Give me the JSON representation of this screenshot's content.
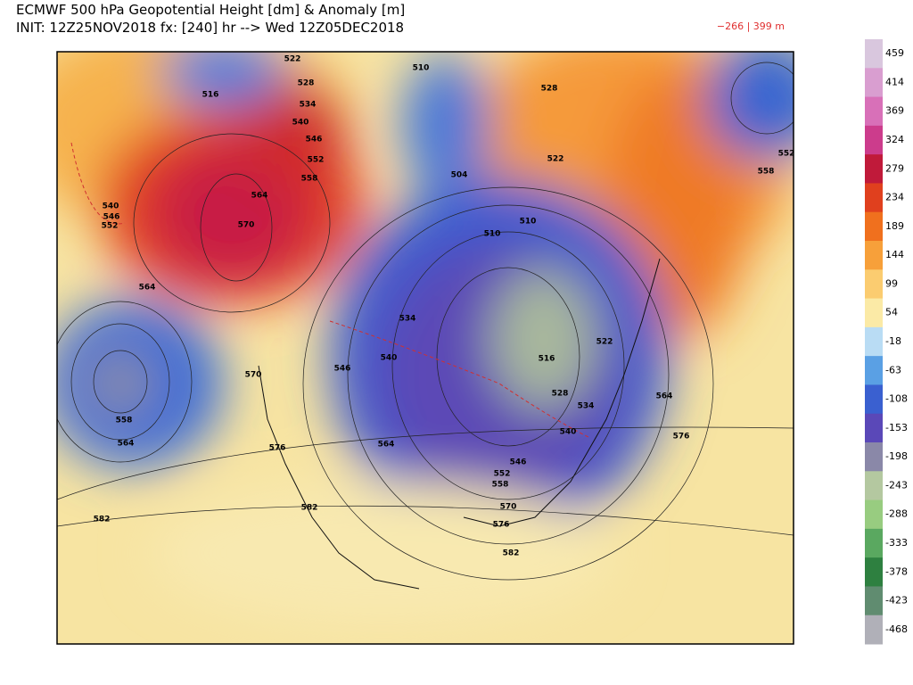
{
  "header": {
    "title": "ECMWF 500 hPa Geopotential Height [dm] & Anomaly [m]",
    "subtitle": "INIT: 12Z25NOV2018 fx: [240] hr --> Wed 12Z05DEC2018",
    "range": "−266 | 399 m"
  },
  "colorbar": {
    "levels": [
      459,
      414,
      369,
      324,
      279,
      234,
      189,
      144,
      99,
      54,
      -18,
      -63,
      -108,
      -153,
      -198,
      -243,
      -288,
      -333,
      -378,
      -423,
      -468
    ],
    "colors": [
      "#d9c7de",
      "#d99ed0",
      "#d870b8",
      "#cc3c8c",
      "#c01a3a",
      "#e0401e",
      "#f0701e",
      "#f7a03a",
      "#fbcc70",
      "#fbeaa6",
      "#b9dcf4",
      "#5aa0e4",
      "#3a60d0",
      "#5a48b8",
      "#8a88a8",
      "#b4c8a0",
      "#98cc80",
      "#5aa860",
      "#2e8040",
      "#608c70",
      "#b0b0b8"
    ]
  },
  "contour_labels": [
    "522",
    "516",
    "528",
    "534",
    "540",
    "546",
    "552",
    "558",
    "564",
    "570",
    "540",
    "546",
    "552",
    "564",
    "510",
    "528",
    "504",
    "510",
    "510",
    "522",
    "552",
    "558",
    "534",
    "540",
    "546",
    "570",
    "558",
    "564",
    "576",
    "564",
    "546",
    "552",
    "558",
    "570",
    "576",
    "582",
    "582",
    "582",
    "576",
    "564",
    "522",
    "516",
    "528",
    "534",
    "540"
  ]
}
